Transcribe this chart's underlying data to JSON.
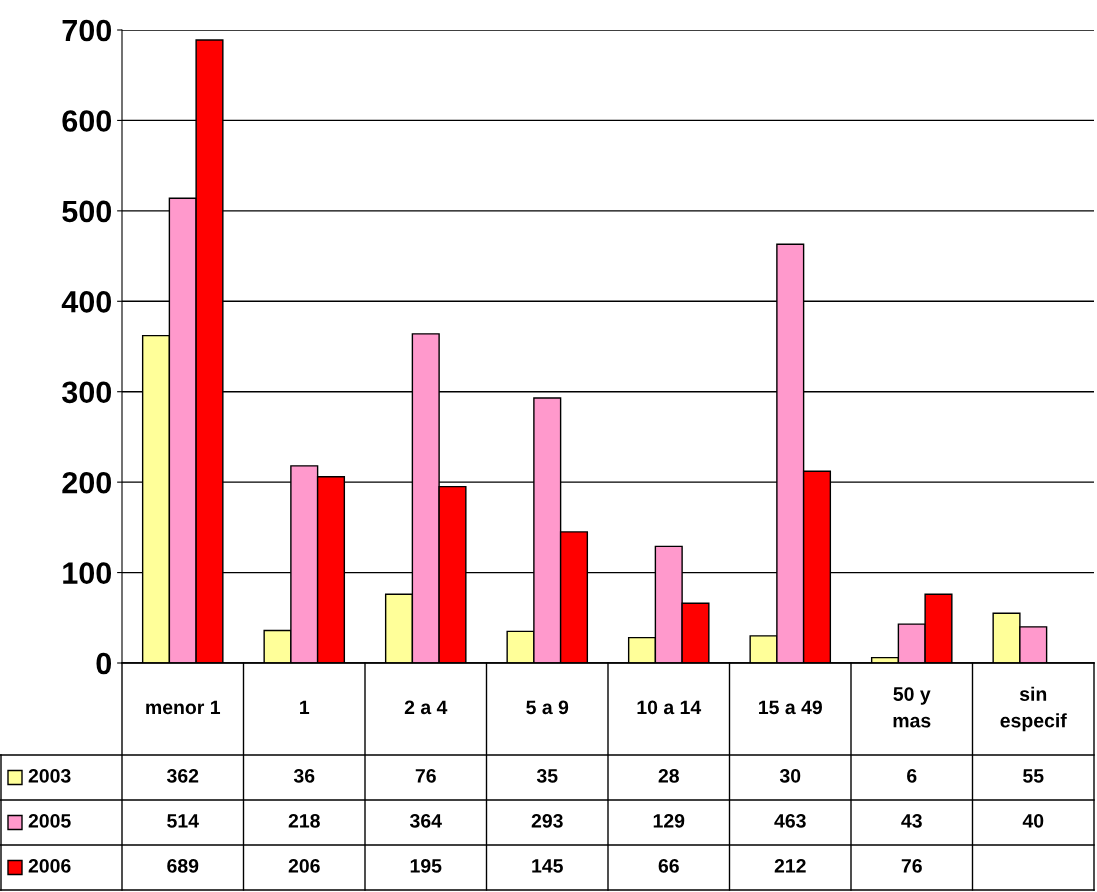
{
  "chart_data": {
    "type": "bar",
    "categories": [
      "menor 1",
      "1",
      "2 a 4",
      "5 a 9",
      "10 a 14",
      "15 a 49",
      "50 y\nmas",
      "sin\nespecif"
    ],
    "series": [
      {
        "name": "2003",
        "color": "#ffff99",
        "values": [
          362,
          36,
          76,
          35,
          28,
          30,
          6,
          55
        ]
      },
      {
        "name": "2005",
        "color": "#ff99cc",
        "values": [
          514,
          218,
          364,
          293,
          129,
          463,
          43,
          40
        ]
      },
      {
        "name": "2006",
        "color": "#ff0000",
        "values": [
          689,
          206,
          195,
          145,
          66,
          212,
          76,
          null
        ]
      }
    ],
    "ylim": [
      0,
      700
    ],
    "yticks": [
      0,
      100,
      200,
      300,
      400,
      500,
      600,
      700
    ],
    "grid": "y",
    "legend": "bottom",
    "data_labels": true
  }
}
